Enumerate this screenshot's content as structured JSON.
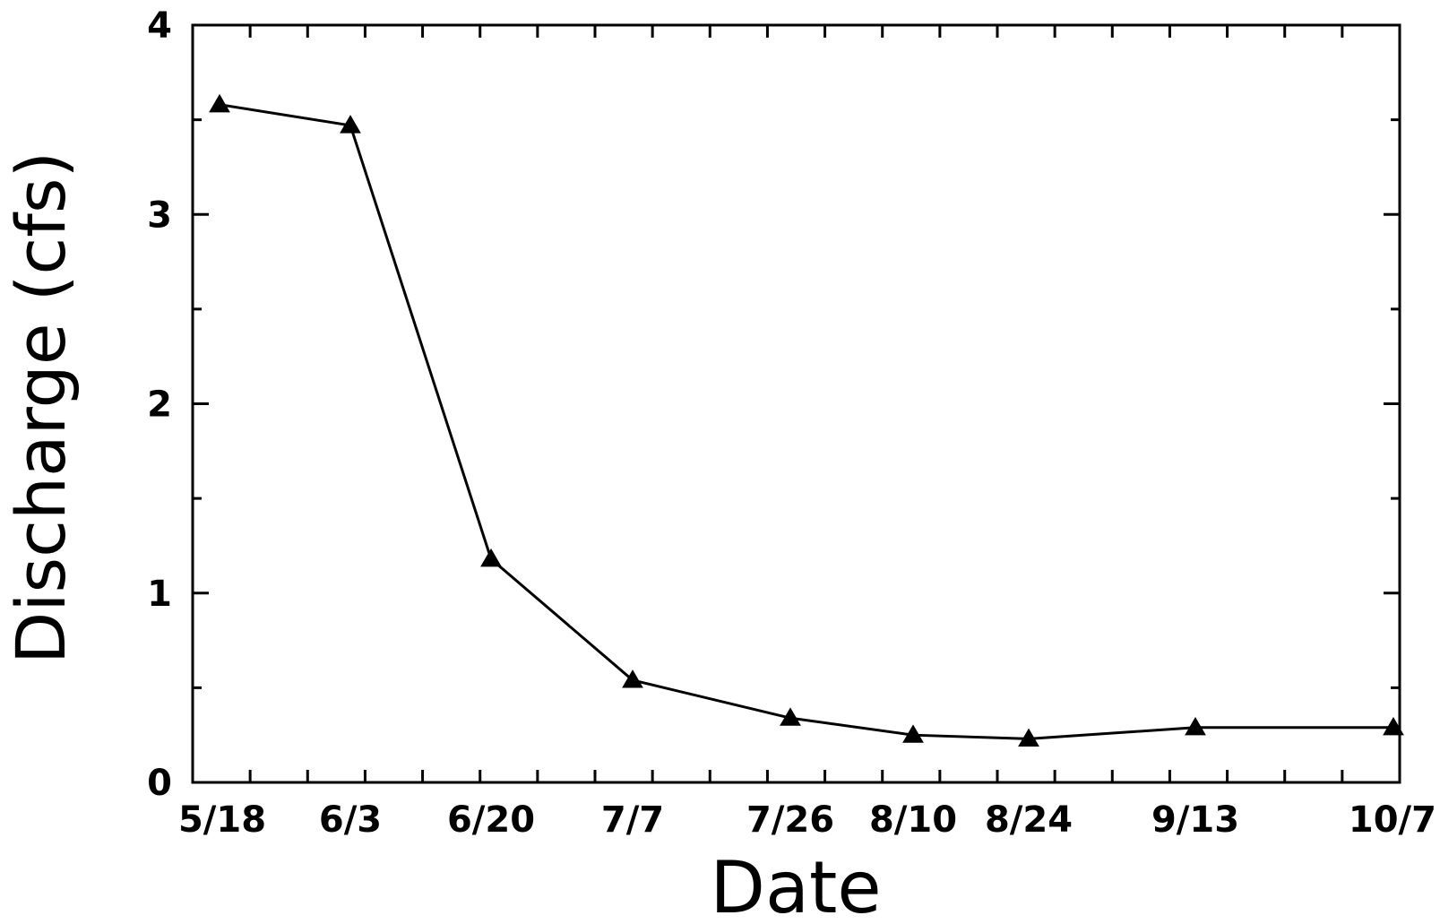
{
  "chart_data": {
    "type": "line",
    "title": "",
    "xlabel": "Date",
    "ylabel": "Discharge (cfs)",
    "ylim": [
      0,
      4
    ],
    "y_ticks": [
      "0",
      "1",
      "2",
      "3",
      "4"
    ],
    "x_ticks": [
      "5/18",
      "6/3",
      "6/20",
      "7/7",
      "7/26",
      "8/10",
      "8/24",
      "9/13",
      "10/7"
    ],
    "grid": false,
    "series": [
      {
        "marker": "triangle",
        "color": "#000000",
        "x": [
          "5/18",
          "6/3",
          "6/20",
          "7/7",
          "7/26",
          "8/10",
          "8/24",
          "9/13",
          "10/7"
        ],
        "values": [
          3.58,
          3.47,
          1.18,
          0.54,
          0.34,
          0.25,
          0.23,
          0.29,
          0.29
        ]
      }
    ]
  }
}
